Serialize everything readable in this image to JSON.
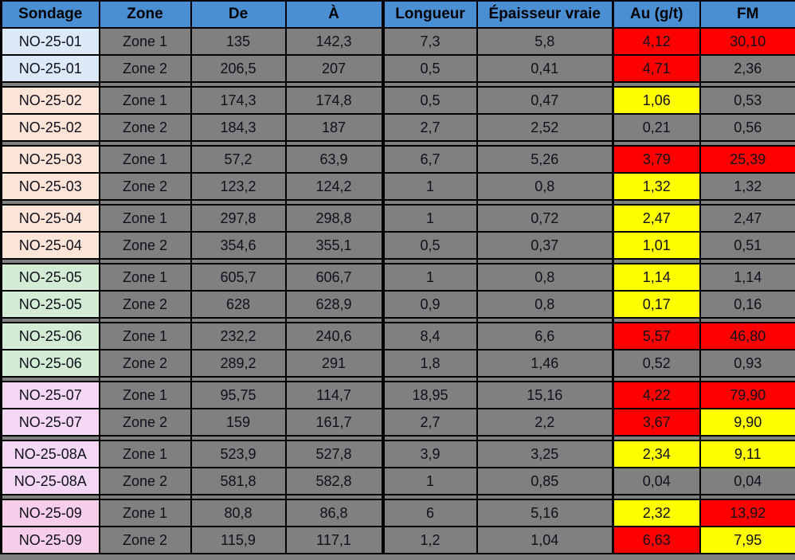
{
  "colors": {
    "header_bg": "#4A8FD3",
    "cell_bg": "#808080",
    "grid_line": "#000000",
    "highlight_red": "#FF0000",
    "highlight_yellow": "#FFFF00",
    "group_blue": "#DCEAF8",
    "group_peach": "#FCE4D6",
    "group_green": "#D2EDD4",
    "group_lavender": "#F4D7F2",
    "group_pink": "#F6CEE9"
  },
  "table": {
    "column_keys": [
      "sondage",
      "zone",
      "de",
      "a",
      "longueur",
      "epaisseur",
      "au",
      "fm"
    ],
    "headers": [
      "Sondage",
      "Zone",
      "De",
      "À",
      "Longueur",
      "Épaisseur vraie",
      "Au (g/t)",
      "FM"
    ],
    "groups": [
      {
        "color": "#DCEAF8",
        "rows": [
          {
            "sondage": "NO-25-01",
            "zone": "Zone 1",
            "de": "135",
            "a": "142,3",
            "longueur": "7,3",
            "epaisseur": "5,8",
            "au": "4,12",
            "au_bg": "red",
            "fm": "30,10",
            "fm_bg": "red"
          },
          {
            "sondage": "NO-25-01",
            "zone": "Zone 2",
            "de": "206,5",
            "a": "207",
            "longueur": "0,5",
            "epaisseur": "0,41",
            "au": "4,71",
            "au_bg": "red",
            "fm": "2,36",
            "fm_bg": "none"
          }
        ]
      },
      {
        "color": "#FCE4D6",
        "rows": [
          {
            "sondage": "NO-25-02",
            "zone": "Zone 1",
            "de": "174,3",
            "a": "174,8",
            "longueur": "0,5",
            "epaisseur": "0,47",
            "au": "1,06",
            "au_bg": "yellow",
            "fm": "0,53",
            "fm_bg": "none"
          },
          {
            "sondage": "NO-25-02",
            "zone": "Zone 2",
            "de": "184,3",
            "a": "187",
            "longueur": "2,7",
            "epaisseur": "2,52",
            "au": "0,21",
            "au_bg": "none",
            "fm": "0,56",
            "fm_bg": "none"
          }
        ]
      },
      {
        "color": "#FCE4D6",
        "rows": [
          {
            "sondage": "NO-25-03",
            "zone": "Zone 1",
            "de": "57,2",
            "a": "63,9",
            "longueur": "6,7",
            "epaisseur": "5,26",
            "au": "3,79",
            "au_bg": "red",
            "fm": "25,39",
            "fm_bg": "red"
          },
          {
            "sondage": "NO-25-03",
            "zone": "Zone 2",
            "de": "123,2",
            "a": "124,2",
            "longueur": "1",
            "epaisseur": "0,8",
            "au": "1,32",
            "au_bg": "yellow",
            "fm": "1,32",
            "fm_bg": "none"
          }
        ]
      },
      {
        "color": "#FCE4D6",
        "rows": [
          {
            "sondage": "NO-25-04",
            "zone": "Zone 1",
            "de": "297,8",
            "a": "298,8",
            "longueur": "1",
            "epaisseur": "0,72",
            "au": "2,47",
            "au_bg": "yellow",
            "fm": "2,47",
            "fm_bg": "none"
          },
          {
            "sondage": "NO-25-04",
            "zone": "Zone 2",
            "de": "354,6",
            "a": "355,1",
            "longueur": "0,5",
            "epaisseur": "0,37",
            "au": "1,01",
            "au_bg": "yellow",
            "fm": "0,51",
            "fm_bg": "none"
          }
        ]
      },
      {
        "color": "#D2EDD4",
        "rows": [
          {
            "sondage": "NO-25-05",
            "zone": "Zone 1",
            "de": "605,7",
            "a": "606,7",
            "longueur": "1",
            "epaisseur": "0,8",
            "au": "1,14",
            "au_bg": "yellow",
            "fm": "1,14",
            "fm_bg": "none"
          },
          {
            "sondage": "NO-25-05",
            "zone": "Zone 2",
            "de": "628",
            "a": "628,9",
            "longueur": "0,9",
            "epaisseur": "0,8",
            "au": "0,17",
            "au_bg": "yellow",
            "fm": "0,16",
            "fm_bg": "none"
          }
        ]
      },
      {
        "color": "#D2EDD4",
        "rows": [
          {
            "sondage": "NO-25-06",
            "zone": "Zone 1",
            "de": "232,2",
            "a": "240,6",
            "longueur": "8,4",
            "epaisseur": "6,6",
            "au": "5,57",
            "au_bg": "red",
            "fm": "46,80",
            "fm_bg": "red"
          },
          {
            "sondage": "NO-25-06",
            "zone": "Zone 2",
            "de": "289,2",
            "a": "291",
            "longueur": "1,8",
            "epaisseur": "1,46",
            "au": "0,52",
            "au_bg": "none",
            "fm": "0,93",
            "fm_bg": "none"
          }
        ]
      },
      {
        "color": "#F4D7F2",
        "rows": [
          {
            "sondage": "NO-25-07",
            "zone": "Zone 1",
            "de": "95,75",
            "a": "114,7",
            "longueur": "18,95",
            "epaisseur": "15,16",
            "au": "4,22",
            "au_bg": "red",
            "fm": "79,90",
            "fm_bg": "red"
          },
          {
            "sondage": "NO-25-07",
            "zone": "Zone 2",
            "de": "159",
            "a": "161,7",
            "longueur": "2,7",
            "epaisseur": "2,2",
            "au": "3,67",
            "au_bg": "red",
            "fm": "9,90",
            "fm_bg": "yellow"
          }
        ]
      },
      {
        "color": "#F4D7F2",
        "rows": [
          {
            "sondage": "NO-25-08A",
            "zone": "Zone 1",
            "de": "523,9",
            "a": "527,8",
            "longueur": "3,9",
            "epaisseur": "3,25",
            "au": "2,34",
            "au_bg": "yellow",
            "fm": "9,11",
            "fm_bg": "yellow"
          },
          {
            "sondage": "NO-25-08A",
            "zone": "Zone 2",
            "de": "581,8",
            "a": "582,8",
            "longueur": "1",
            "epaisseur": "0,85",
            "au": "0,04",
            "au_bg": "none",
            "fm": "0,04",
            "fm_bg": "none"
          }
        ]
      },
      {
        "color": "#F6CEE9",
        "rows": [
          {
            "sondage": "NO-25-09",
            "zone": "Zone 1",
            "de": "80,8",
            "a": "86,8",
            "longueur": "6",
            "epaisseur": "5,16",
            "au": "2,32",
            "au_bg": "yellow",
            "fm": "13,92",
            "fm_bg": "red"
          },
          {
            "sondage": "NO-25-09",
            "zone": "Zone 2",
            "de": "115,9",
            "a": "117,1",
            "longueur": "1,2",
            "epaisseur": "1,04",
            "au": "6,63",
            "au_bg": "red",
            "fm": "7,95",
            "fm_bg": "yellow"
          }
        ]
      }
    ]
  }
}
